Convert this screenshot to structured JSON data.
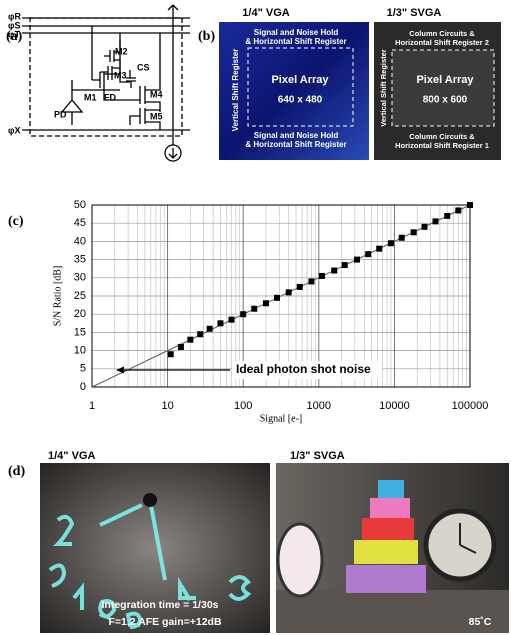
{
  "panel_a": {
    "label": "(a)",
    "labels": {
      "r": "φR",
      "s": "φS",
      "t": "φT",
      "x": "φX",
      "m1": "M1",
      "m2": "M2",
      "m3": "M3",
      "m4": "M4",
      "m5": "M5",
      "fd": "FD",
      "pd": "PD",
      "cs": "CS"
    }
  },
  "panel_b": {
    "label": "(b)",
    "chips": [
      {
        "title": "1/4\" VGA",
        "top": [
          "Signal and Noise Hold",
          "& Horizontal Shift Register"
        ],
        "side": "Vertical Shift Register",
        "center": [
          "Pixel Array",
          "640 x 480"
        ],
        "bottom": [
          "Signal and Noise Hold",
          "& Horizontal Shift Register"
        ]
      },
      {
        "title": "1/3\" SVGA",
        "top": [
          "Column Circuits &",
          "Horizontal Shift Register 2"
        ],
        "side": "Vertical Shift Register",
        "center": [
          "Pixel Array",
          "800 x 600"
        ],
        "bottom": [
          "Column Circuits &",
          "Horizontal Shift Register 1"
        ]
      }
    ]
  },
  "chart_data": {
    "type": "scatter",
    "label": "(c)",
    "xlabel": "Signal [e-]",
    "ylabel": "S/N Ratio [dB]",
    "xscale": "log",
    "grid": true,
    "color": "#000000",
    "x": [
      11,
      15,
      20,
      27,
      36,
      50,
      70,
      100,
      140,
      200,
      280,
      400,
      560,
      800,
      1100,
      1600,
      2200,
      3200,
      4500,
      6300,
      9000,
      12500,
      18000,
      25000,
      35000,
      50000,
      70000,
      100000
    ],
    "values": [
      9,
      11,
      13,
      14.5,
      16,
      17.5,
      18.5,
      20,
      21.5,
      23,
      24.5,
      26,
      27.5,
      29,
      30.5,
      32,
      33.5,
      35,
      36.5,
      38,
      39.5,
      41,
      42.5,
      44,
      45.5,
      47,
      48.5,
      50
    ],
    "reference_line": {
      "x": [
        1,
        100000
      ],
      "values": [
        0,
        50
      ]
    },
    "annotation": "Ideal photon shot noise",
    "xlim": [
      1,
      100000
    ],
    "ylim": [
      0,
      50
    ],
    "xticks": [
      1,
      10,
      100,
      1000,
      10000,
      100000
    ],
    "yticks": [
      0,
      5,
      10,
      15,
      20,
      25,
      30,
      35,
      40,
      45,
      50
    ]
  },
  "panel_d": {
    "label": "(d)",
    "photos": [
      {
        "title": "1/4\" VGA",
        "captions": [
          "Integration time = 1/30s",
          "F=1.2 AFE gain=+12dB"
        ]
      },
      {
        "title": "1/3\" SVGA",
        "captions": [
          "85˚C"
        ]
      }
    ]
  }
}
